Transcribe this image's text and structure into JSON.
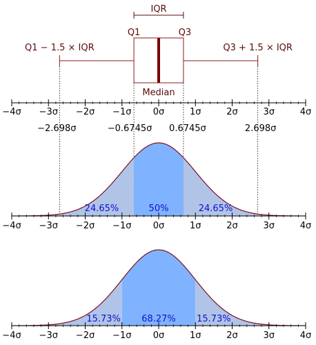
{
  "colors": {
    "box_stroke": "#8b1a1a",
    "median": "#7a0000",
    "text_dark": "#5a0a0a",
    "area_light": "#b0c4e8",
    "area_mid": "#80b3ff",
    "curve": "#7a1020",
    "percent_text": "#1010cc",
    "axis": "#000000"
  },
  "boxplot": {
    "iqr_label": "IQR",
    "q1_label": "Q1",
    "q3_label": "Q3",
    "median_label": "Median",
    "lower_whisker_label": "Q1 − 1.5 × IQR",
    "upper_whisker_label": "Q3 + 1.5 × IQR"
  },
  "axis_ticks": [
    {
      "value": -4,
      "label": "−4σ"
    },
    {
      "value": -3,
      "label": "−3σ"
    },
    {
      "value": -2,
      "label": "−2σ"
    },
    {
      "value": -1,
      "label": "−1σ"
    },
    {
      "value": 0,
      "label": "0σ"
    },
    {
      "value": 1,
      "label": "1σ"
    },
    {
      "value": 2,
      "label": "2σ"
    },
    {
      "value": 3,
      "label": "3σ"
    },
    {
      "value": 4,
      "label": "4σ"
    }
  ],
  "quartile_values": [
    {
      "value": -2.698,
      "label": "−2.698σ"
    },
    {
      "value": -0.6745,
      "label": "−0.6745σ"
    },
    {
      "value": 0.6745,
      "label": "0.6745σ"
    },
    {
      "value": 2.698,
      "label": "2.698σ"
    }
  ],
  "panel_iqr": {
    "regions": [
      {
        "from": -4,
        "to": -0.6745,
        "shade": "light"
      },
      {
        "from": -0.6745,
        "to": 0.6745,
        "shade": "mid"
      },
      {
        "from": 0.6745,
        "to": 4,
        "shade": "light"
      }
    ],
    "percent_labels": [
      {
        "center": -1.55,
        "text": "24.65%"
      },
      {
        "center": 0,
        "text": "50%"
      },
      {
        "center": 1.55,
        "text": "24.65%"
      }
    ]
  },
  "panel_sigma": {
    "regions": [
      {
        "from": -4,
        "to": -1,
        "shade": "light"
      },
      {
        "from": -1,
        "to": 1,
        "shade": "mid"
      },
      {
        "from": 1,
        "to": 4,
        "shade": "light"
      }
    ],
    "percent_labels": [
      {
        "center": -1.5,
        "text": "15.73%"
      },
      {
        "center": 0,
        "text": "68.27%"
      },
      {
        "center": 1.5,
        "text": "15.73%"
      }
    ]
  }
}
